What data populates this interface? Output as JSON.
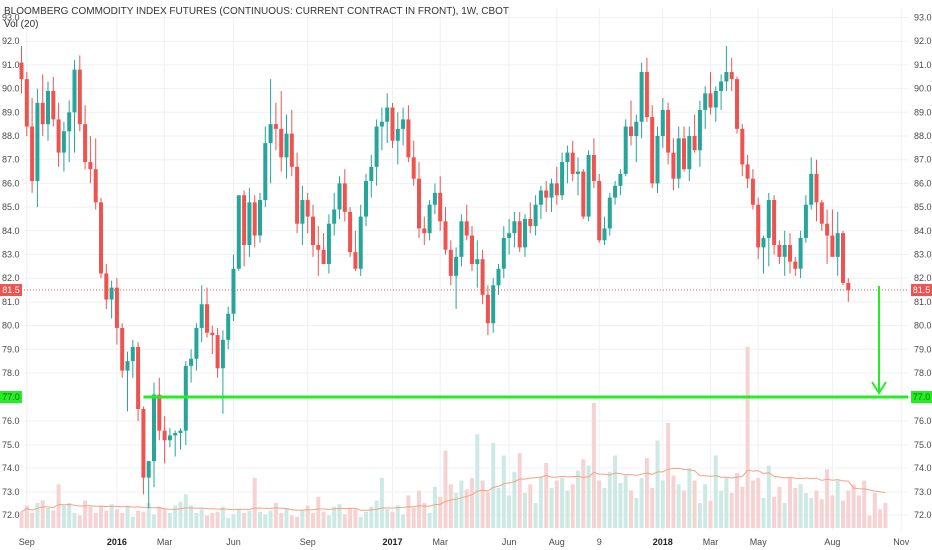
{
  "title": "BLOOMBERG COMMODITY INDEX FUTURES (CONTINUOUS: CURRENT CONTRACT IN FRONT), 1W, CBOT",
  "volume_label": "Vol (20)",
  "colors": {
    "up": "#26a69a",
    "down": "#ef5350",
    "up_volume": "#cde9e4",
    "down_volume": "#f6d3d2",
    "volume_ma": "#f3a283",
    "target_line": "#22ee22",
    "arrow": "#22ee22",
    "grid": "#eef0f3",
    "last_price_line": "#ef5350"
  },
  "price_badges": {
    "last_price": "81.5",
    "target_price": "77.0"
  },
  "chart_data": {
    "type": "candlestick",
    "interval": "1W",
    "y_axis": {
      "ticks": [
        "72.0",
        "73.0",
        "74.0",
        "75.0",
        "76.0",
        "78.0",
        "79.0",
        "80.0",
        "81.0",
        "82.0",
        "83.0",
        "84.0",
        "85.0",
        "86.0",
        "87.0",
        "88.0",
        "89.0",
        "90.0",
        "91.0",
        "92.0",
        "93.0"
      ],
      "range": [
        71.4,
        93.2
      ],
      "note": "axis compressed below 78.0"
    },
    "x_axis": {
      "labels": [
        {
          "text": "Sep",
          "bold": false,
          "week": 1
        },
        {
          "text": "2016",
          "bold": true,
          "week": 18
        },
        {
          "text": "Mar",
          "bold": false,
          "week": 27
        },
        {
          "text": "Jun",
          "bold": false,
          "week": 40
        },
        {
          "text": "Sep",
          "bold": false,
          "week": 54
        },
        {
          "text": "2017",
          "bold": true,
          "week": 70
        },
        {
          "text": "Mar",
          "bold": false,
          "week": 79
        },
        {
          "text": "Jun",
          "bold": false,
          "week": 92
        },
        {
          "text": "Aug",
          "bold": false,
          "week": 101
        },
        {
          "text": "9",
          "bold": false,
          "week": 109
        },
        {
          "text": "2018",
          "bold": true,
          "week": 121
        },
        {
          "text": "Mar",
          "bold": false,
          "week": 130
        },
        {
          "text": "May",
          "bold": false,
          "week": 139
        },
        {
          "text": "Aug",
          "bold": false,
          "week": 153
        },
        {
          "text": "Nov",
          "bold": false,
          "week": 166
        }
      ]
    },
    "candles": [
      [
        91.1,
        91.8,
        89.8,
        90.4
      ],
      [
        90.4,
        90.7,
        88.0,
        88.4
      ],
      [
        88.4,
        89.6,
        85.6,
        86.1
      ],
      [
        86.1,
        90.0,
        85.0,
        89.4
      ],
      [
        89.4,
        90.6,
        88.0,
        88.5
      ],
      [
        88.5,
        90.3,
        87.8,
        89.9
      ],
      [
        89.9,
        90.5,
        88.4,
        88.7
      ],
      [
        88.7,
        89.4,
        86.7,
        87.3
      ],
      [
        87.3,
        88.6,
        86.5,
        88.2
      ],
      [
        88.2,
        89.5,
        86.9,
        89.0
      ],
      [
        89.0,
        91.2,
        87.3,
        90.8
      ],
      [
        90.8,
        91.4,
        88.2,
        88.5
      ],
      [
        88.5,
        89.3,
        86.6,
        86.9
      ],
      [
        86.9,
        88.0,
        86.0,
        86.6
      ],
      [
        86.6,
        87.9,
        84.9,
        85.2
      ],
      [
        85.2,
        85.4,
        82.0,
        82.2
      ],
      [
        82.2,
        82.6,
        80.7,
        81.1
      ],
      [
        81.1,
        81.9,
        80.3,
        81.6
      ],
      [
        81.6,
        82.0,
        79.2,
        79.9
      ],
      [
        79.9,
        80.1,
        77.8,
        78.1
      ],
      [
        78.1,
        78.9,
        76.4,
        78.5
      ],
      [
        78.5,
        79.4,
        77.8,
        79.1
      ],
      [
        79.1,
        79.3,
        76.0,
        76.5
      ],
      [
        76.5,
        76.6,
        72.9,
        73.6
      ],
      [
        73.6,
        74.2,
        72.3,
        74.3
      ],
      [
        74.3,
        77.6,
        73.2,
        77.1
      ],
      [
        77.1,
        77.8,
        75.2,
        75.6
      ],
      [
        75.6,
        76.2,
        74.2,
        75.2
      ],
      [
        75.2,
        75.7,
        74.9,
        75.4
      ],
      [
        75.4,
        75.6,
        74.5,
        75.5
      ],
      [
        75.5,
        75.7,
        74.8,
        75.6
      ],
      [
        75.6,
        78.5,
        75.0,
        78.3
      ],
      [
        78.3,
        79.0,
        77.6,
        78.6
      ],
      [
        78.6,
        80.1,
        78.1,
        79.9
      ],
      [
        79.9,
        81.7,
        79.3,
        80.9
      ],
      [
        80.9,
        81.6,
        79.5,
        79.7
      ],
      [
        79.7,
        80.0,
        78.8,
        79.6
      ],
      [
        79.6,
        79.9,
        77.8,
        78.2
      ],
      [
        78.2,
        79.8,
        76.3,
        79.4
      ],
      [
        79.4,
        80.8,
        79.0,
        80.5
      ],
      [
        80.5,
        83.0,
        80.2,
        82.4
      ],
      [
        82.4,
        85.4,
        82.3,
        85.5
      ],
      [
        85.5,
        85.7,
        82.5,
        83.4
      ],
      [
        83.4,
        85.8,
        82.9,
        85.2
      ],
      [
        85.2,
        85.5,
        83.3,
        83.8
      ],
      [
        83.8,
        85.6,
        83.5,
        85.3
      ],
      [
        85.3,
        88.4,
        85.0,
        87.7
      ],
      [
        87.7,
        90.4,
        86.0,
        88.5
      ],
      [
        88.5,
        89.4,
        87.4,
        88.3
      ],
      [
        88.3,
        89.9,
        86.5,
        87.1
      ],
      [
        87.1,
        88.9,
        86.2,
        88.1
      ],
      [
        88.1,
        89.1,
        86.3,
        86.7
      ],
      [
        86.7,
        87.3,
        83.9,
        84.3
      ],
      [
        84.3,
        85.9,
        83.4,
        85.3
      ],
      [
        85.3,
        85.6,
        83.9,
        84.6
      ],
      [
        84.6,
        85.1,
        82.9,
        83.4
      ],
      [
        83.4,
        84.2,
        82.1,
        83.2
      ],
      [
        83.2,
        83.9,
        82.7,
        82.6
      ],
      [
        82.6,
        84.7,
        82.2,
        84.3
      ],
      [
        84.3,
        85.6,
        83.8,
        84.9
      ],
      [
        84.9,
        86.3,
        84.5,
        86.0
      ],
      [
        86.0,
        86.6,
        84.4,
        84.8
      ],
      [
        84.8,
        85.0,
        82.9,
        83.1
      ],
      [
        83.1,
        84.0,
        82.3,
        82.4
      ],
      [
        82.4,
        85.1,
        82.1,
        84.6
      ],
      [
        84.6,
        86.4,
        84.2,
        86.1
      ],
      [
        86.1,
        87.2,
        85.4,
        86.7
      ],
      [
        86.7,
        88.7,
        85.9,
        88.4
      ],
      [
        88.4,
        89.2,
        87.4,
        88.6
      ],
      [
        88.6,
        89.8,
        87.7,
        89.2
      ],
      [
        89.2,
        89.4,
        87.5,
        87.8
      ],
      [
        87.8,
        89.0,
        86.8,
        88.3
      ],
      [
        88.3,
        89.2,
        87.6,
        88.7
      ],
      [
        88.7,
        89.3,
        86.9,
        87.1
      ],
      [
        87.1,
        87.8,
        85.9,
        86.2
      ],
      [
        86.2,
        86.9,
        83.7,
        84.1
      ],
      [
        84.1,
        84.6,
        83.4,
        83.9
      ],
      [
        83.9,
        85.3,
        83.6,
        85.1
      ],
      [
        85.1,
        86.0,
        84.7,
        85.6
      ],
      [
        85.6,
        86.3,
        84.0,
        84.4
      ],
      [
        84.4,
        85.0,
        83.0,
        83.2
      ],
      [
        83.2,
        83.6,
        81.7,
        82.1
      ],
      [
        82.1,
        83.3,
        80.7,
        82.9
      ],
      [
        82.9,
        84.7,
        82.5,
        84.4
      ],
      [
        84.4,
        85.1,
        83.6,
        83.8
      ],
      [
        83.8,
        84.2,
        82.3,
        82.6
      ],
      [
        82.6,
        83.6,
        81.6,
        82.8
      ],
      [
        82.8,
        83.2,
        80.9,
        81.3
      ],
      [
        81.3,
        81.7,
        79.6,
        80.1
      ],
      [
        80.1,
        82.0,
        79.7,
        81.7
      ],
      [
        81.7,
        82.6,
        81.3,
        82.4
      ],
      [
        82.4,
        84.2,
        82.0,
        83.7
      ],
      [
        83.7,
        84.5,
        83.0,
        83.9
      ],
      [
        83.9,
        84.8,
        83.3,
        84.4
      ],
      [
        84.4,
        84.8,
        83.1,
        83.3
      ],
      [
        83.3,
        84.7,
        82.9,
        84.5
      ],
      [
        84.5,
        85.2,
        83.9,
        84.2
      ],
      [
        84.2,
        85.5,
        83.8,
        85.1
      ],
      [
        85.1,
        85.9,
        84.5,
        85.7
      ],
      [
        85.7,
        86.1,
        84.8,
        85.4
      ],
      [
        85.4,
        86.2,
        84.8,
        86.0
      ],
      [
        86.0,
        86.7,
        85.1,
        85.5
      ],
      [
        85.5,
        87.3,
        85.3,
        86.9
      ],
      [
        86.9,
        87.6,
        86.0,
        87.3
      ],
      [
        87.3,
        87.8,
        86.1,
        86.4
      ],
      [
        86.4,
        87.1,
        85.5,
        86.5
      ],
      [
        86.5,
        86.6,
        84.5,
        84.6
      ],
      [
        84.6,
        87.4,
        84.4,
        87.2
      ],
      [
        87.2,
        87.9,
        85.8,
        86.1
      ],
      [
        86.1,
        86.4,
        83.5,
        83.6
      ],
      [
        83.6,
        84.6,
        83.4,
        84.1
      ],
      [
        84.1,
        85.6,
        83.8,
        85.4
      ],
      [
        85.4,
        86.1,
        85.1,
        85.9
      ],
      [
        85.9,
        86.6,
        85.5,
        86.4
      ],
      [
        86.4,
        88.7,
        86.3,
        88.4
      ],
      [
        88.4,
        89.5,
        87.6,
        88.0
      ],
      [
        88.0,
        88.9,
        86.9,
        88.6
      ],
      [
        88.6,
        91.1,
        87.9,
        90.7
      ],
      [
        90.7,
        91.3,
        88.6,
        88.8
      ],
      [
        88.8,
        89.3,
        85.8,
        86.0
      ],
      [
        86.0,
        88.4,
        85.6,
        88.0
      ],
      [
        88.0,
        89.6,
        87.5,
        89.1
      ],
      [
        89.1,
        89.4,
        86.8,
        87.3
      ],
      [
        87.3,
        87.9,
        85.7,
        86.2
      ],
      [
        86.2,
        88.4,
        85.8,
        87.9
      ],
      [
        87.9,
        88.4,
        86.5,
        86.6
      ],
      [
        86.6,
        88.4,
        86.1,
        88.0
      ],
      [
        88.0,
        88.9,
        87.3,
        87.4
      ],
      [
        87.4,
        89.5,
        86.7,
        89.1
      ],
      [
        89.1,
        90.1,
        88.3,
        89.8
      ],
      [
        89.8,
        90.7,
        88.9,
        89.2
      ],
      [
        89.2,
        90.1,
        88.6,
        89.9
      ],
      [
        89.9,
        90.6,
        89.1,
        90.3
      ],
      [
        90.3,
        91.8,
        89.9,
        90.7
      ],
      [
        90.7,
        91.3,
        89.9,
        90.4
      ],
      [
        90.4,
        90.5,
        88.1,
        88.3
      ],
      [
        88.3,
        88.5,
        86.3,
        86.8
      ],
      [
        86.8,
        87.2,
        85.8,
        86.2
      ],
      [
        86.2,
        86.6,
        84.9,
        85.1
      ],
      [
        85.1,
        85.4,
        82.8,
        83.3
      ],
      [
        83.3,
        83.8,
        82.2,
        83.7
      ],
      [
        83.7,
        85.6,
        82.5,
        85.3
      ],
      [
        85.3,
        85.5,
        83.0,
        83.4
      ],
      [
        83.4,
        83.6,
        82.6,
        82.9
      ],
      [
        82.9,
        84.0,
        82.1,
        83.4
      ],
      [
        83.4,
        83.9,
        82.2,
        82.7
      ],
      [
        82.7,
        82.9,
        82.1,
        82.4
      ],
      [
        82.4,
        84.0,
        82.0,
        83.7
      ],
      [
        83.7,
        85.5,
        83.5,
        85.1
      ],
      [
        85.1,
        87.1,
        84.9,
        86.4
      ],
      [
        86.4,
        87.0,
        84.4,
        85.2
      ],
      [
        85.2,
        85.3,
        84.0,
        84.3
      ],
      [
        84.3,
        84.9,
        82.6,
        83.8
      ],
      [
        83.8,
        84.9,
        83.0,
        82.9
      ],
      [
        82.9,
        84.8,
        82.1,
        83.9
      ],
      [
        83.9,
        84.0,
        81.7,
        81.8
      ],
      [
        81.8,
        82.0,
        81.0,
        81.5
      ]
    ],
    "volumes": [
      0.13,
      0.18,
      0.12,
      0.2,
      0.22,
      0.16,
      0.14,
      0.35,
      0.18,
      0.2,
      0.12,
      0.1,
      0.22,
      0.17,
      0.12,
      0.18,
      0.14,
      0.19,
      0.15,
      0.12,
      0.18,
      0.09,
      0.14,
      0.13,
      0.2,
      0.11,
      0.17,
      0.15,
      0.12,
      0.18,
      0.21,
      0.27,
      0.18,
      0.12,
      0.15,
      0.1,
      0.12,
      0.13,
      0.17,
      0.08,
      0.11,
      0.15,
      0.12,
      0.14,
      0.4,
      0.13,
      0.11,
      0.14,
      0.2,
      0.12,
      0.16,
      0.1,
      0.09,
      0.14,
      0.18,
      0.12,
      0.25,
      0.13,
      0.1,
      0.17,
      0.19,
      0.11,
      0.16,
      0.15,
      0.09,
      0.13,
      0.17,
      0.22,
      0.4,
      0.15,
      0.13,
      0.18,
      0.11,
      0.26,
      0.16,
      0.3,
      0.2,
      0.12,
      0.33,
      0.25,
      0.62,
      0.35,
      0.28,
      0.38,
      0.31,
      0.4,
      0.75,
      0.38,
      0.29,
      0.68,
      0.32,
      0.58,
      0.26,
      0.45,
      0.6,
      0.28,
      0.35,
      0.2,
      0.41,
      0.52,
      0.32,
      0.38,
      0.4,
      0.3,
      0.35,
      0.46,
      0.55,
      0.5,
      1.0,
      0.38,
      0.32,
      0.45,
      0.58,
      0.36,
      0.42,
      0.3,
      0.24,
      0.4,
      0.56,
      0.32,
      0.7,
      0.38,
      0.84,
      0.42,
      0.35,
      0.3,
      0.48,
      0.38,
      0.2,
      0.35,
      0.22,
      0.58,
      0.3,
      0.4,
      0.28,
      0.44,
      0.33,
      1.45,
      0.38,
      0.4,
      0.24,
      0.5,
      0.25,
      0.33,
      0.2,
      0.4,
      0.32,
      0.35,
      0.28,
      0.24,
      0.3,
      0.23,
      0.47,
      0.26,
      0.38,
      0.22,
      0.3,
      0.35,
      0.26,
      0.38,
      0.1,
      0.28,
      0.15,
      0.2
    ],
    "target_level": 77.0,
    "last_price": 81.5
  }
}
